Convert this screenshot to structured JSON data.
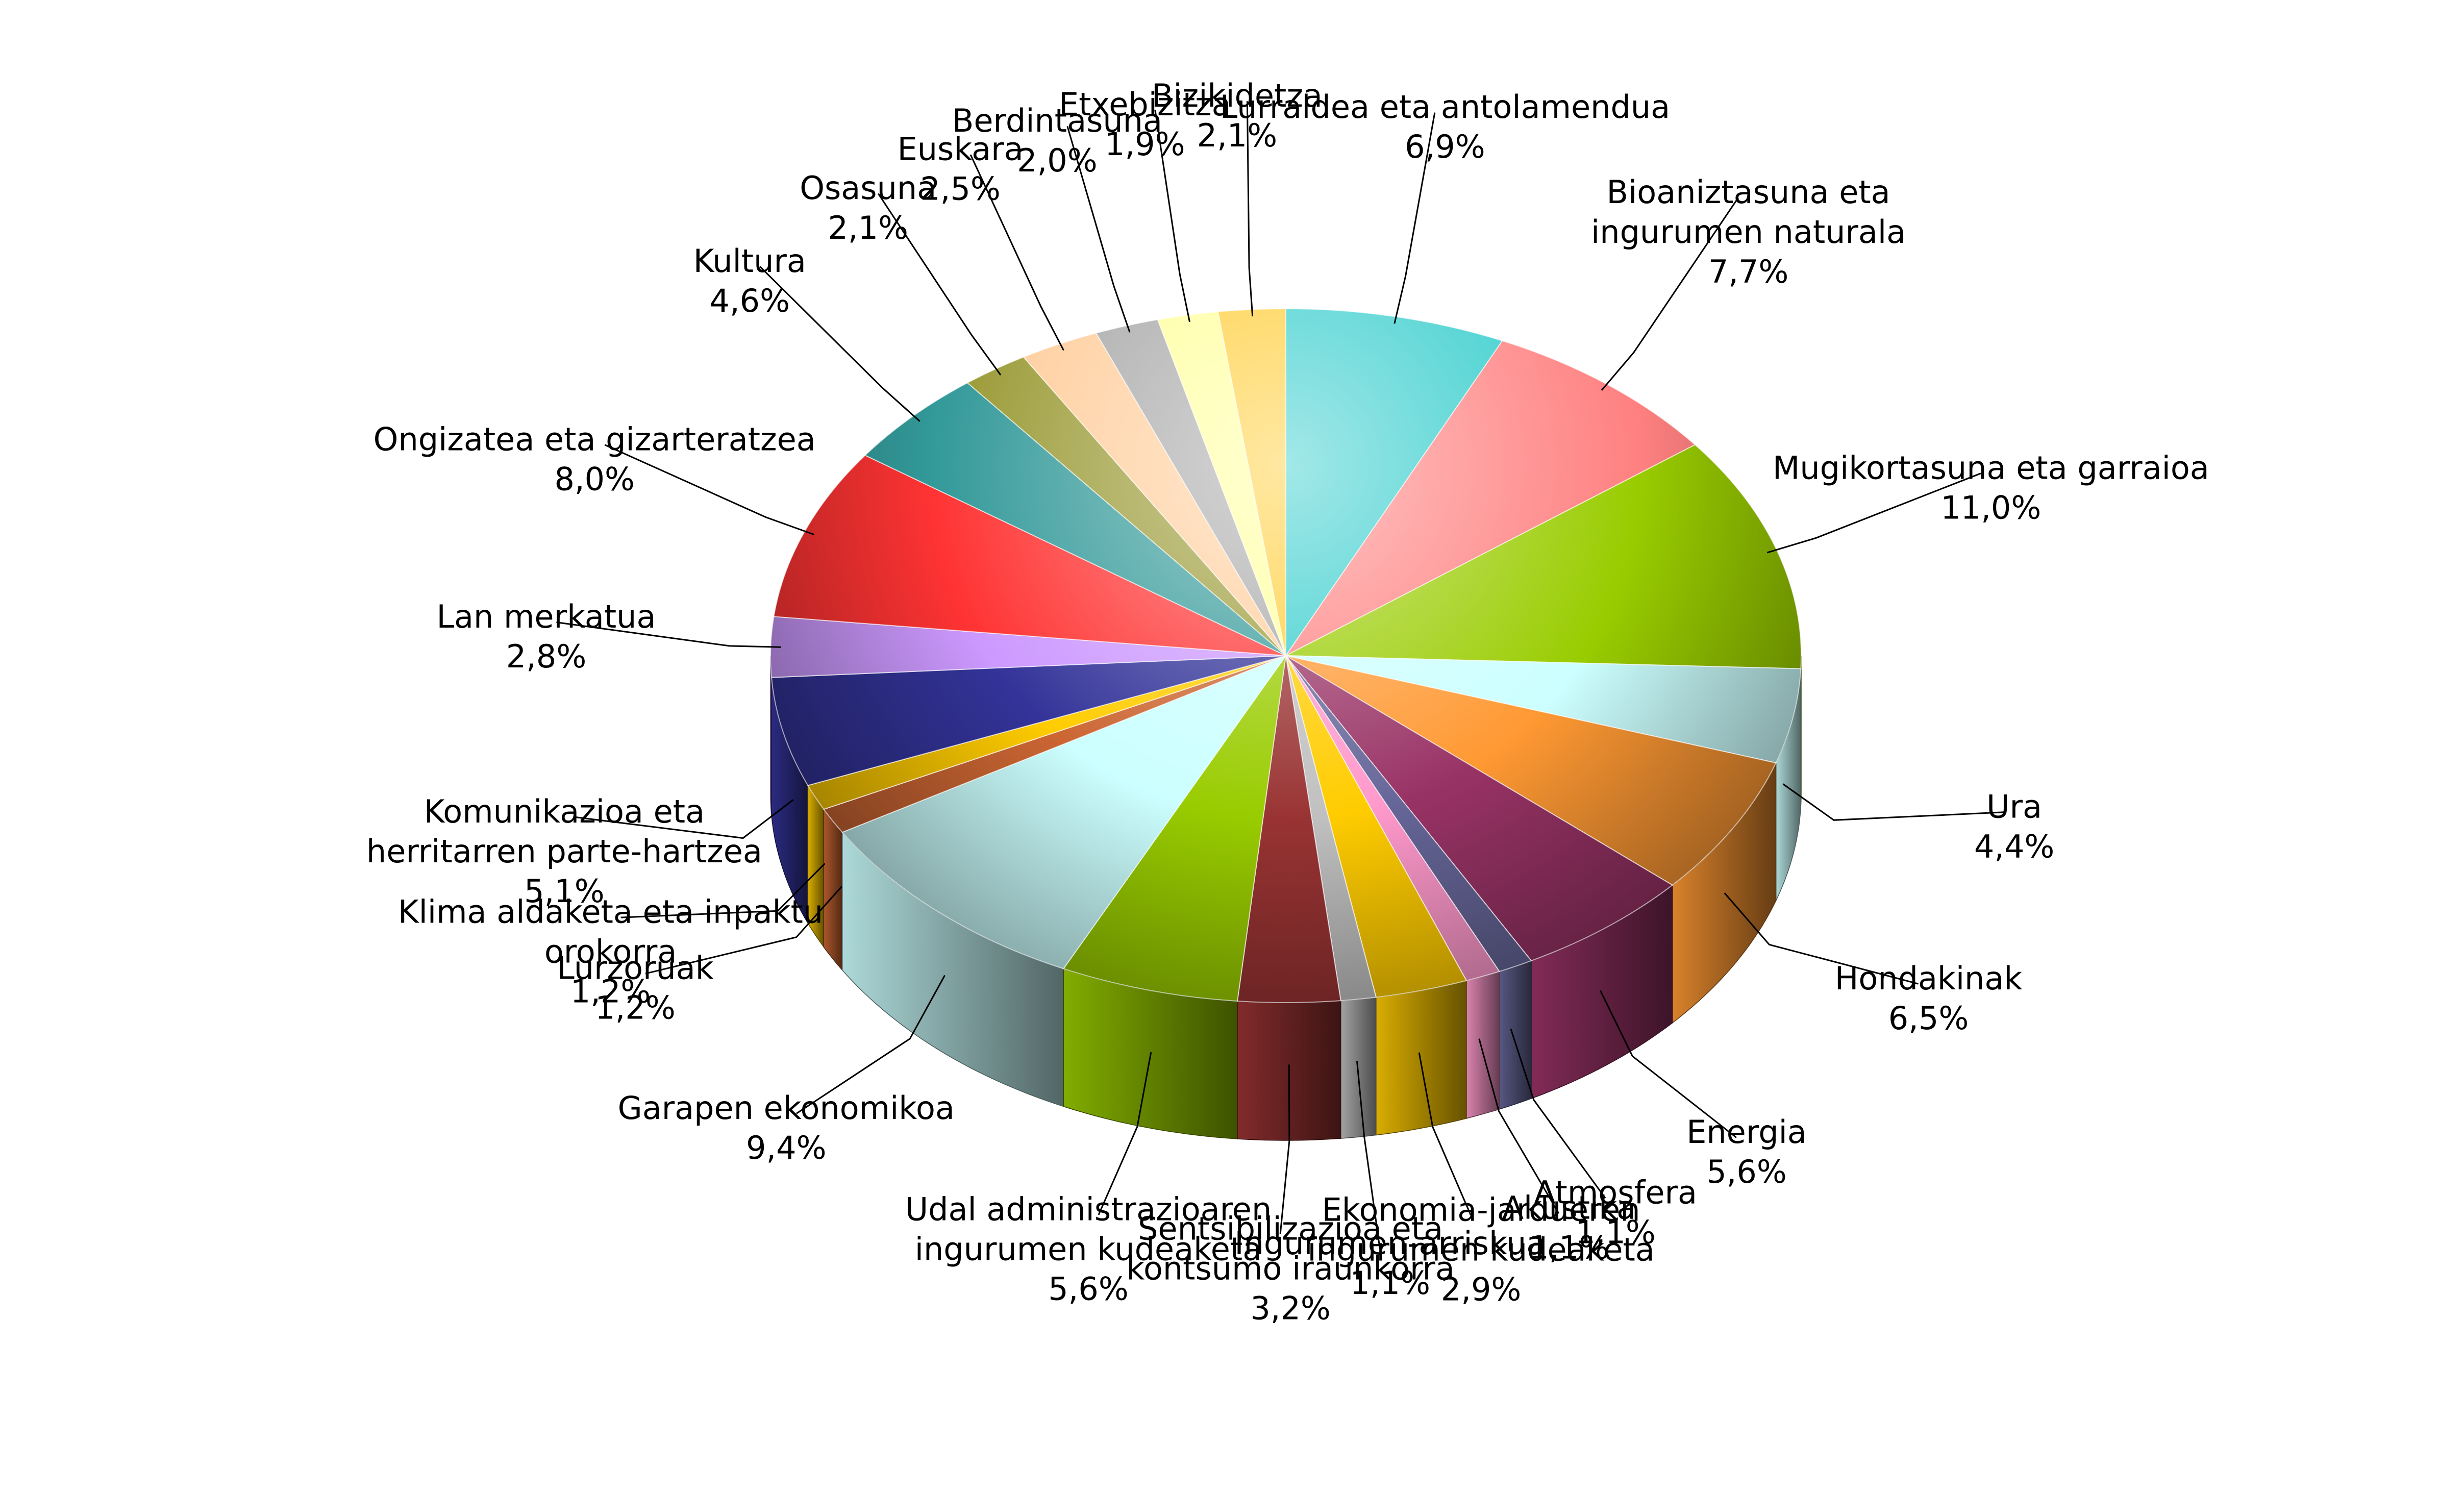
{
  "chart_data": {
    "type": "pie",
    "title": "",
    "legend": "none",
    "labels_style": "callout labels with leader lines",
    "start_angle": "12 o'clock",
    "direction": "clockwise",
    "slices": [
      {
        "label": "Lurraldea eta antolamendua",
        "value": 6.9,
        "value_label": "6,9%",
        "color": "#33CCCC"
      },
      {
        "label": "Bioaniztasuna eta ingurumen naturala",
        "value": 7.7,
        "value_label": "7,7%",
        "color": "#FF8080"
      },
      {
        "label": "Mugikortasuna eta garraioa",
        "value": 11.0,
        "value_label": "11,0%",
        "color": "#99CC00"
      },
      {
        "label": "Ura",
        "value": 4.4,
        "value_label": "4,4%",
        "color": "#CCFFFF"
      },
      {
        "label": "Hondakinak",
        "value": 6.5,
        "value_label": "6,5%",
        "color": "#FF9933"
      },
      {
        "label": "Energia",
        "value": 5.6,
        "value_label": "5,6%",
        "color": "#993366"
      },
      {
        "label": "Atmosfera",
        "value": 1.1,
        "value_label": "1,1%",
        "color": "#666699"
      },
      {
        "label": "Akustika",
        "value": 1.1,
        "value_label": "1,1%",
        "color": "#FF99CC"
      },
      {
        "label": "Ekonomia-jardueren ingurumen kudeaketa",
        "value": 2.9,
        "value_label": "2,9%",
        "color": "#FFCC00"
      },
      {
        "label": "Ingurumen-arriskua",
        "value": 1.1,
        "value_label": "1,1%",
        "color": "#C0C0C0"
      },
      {
        "label": "Sentsibilizazioa eta kontsumo iraunkorra",
        "value": 3.2,
        "value_label": "3,2%",
        "color": "#993333"
      },
      {
        "label": "Udal administrazioaren ingurumen kudeaketa",
        "value": 5.6,
        "value_label": "5,6%",
        "color": "#99CC00"
      },
      {
        "label": "Garapen ekonomikoa",
        "value": 9.4,
        "value_label": "9,4%",
        "color": "#CCFFFF"
      },
      {
        "label": "Lurzoruak",
        "value": 1.2,
        "value_label": "1,2%",
        "color": "#CC6633"
      },
      {
        "label": "Klima aldaketa eta inpaktu orokorra",
        "value": 1.2,
        "value_label": "1,2%",
        "color": "#FFCC00"
      },
      {
        "label": "Komunikazioa eta herritarren parte-hartzea",
        "value": 5.1,
        "value_label": "5,1%",
        "color": "#333399"
      },
      {
        "label": "Lan merkatua",
        "value": 2.8,
        "value_label": "2,8%",
        "color": "#CC99FF"
      },
      {
        "label": "Ongizatea eta gizarteratzea",
        "value": 8.0,
        "value_label": "8,0%",
        "color": "#FF3333"
      },
      {
        "label": "Kultura",
        "value": 4.6,
        "value_label": "4,6%",
        "color": "#339999"
      },
      {
        "label": "Osasuna",
        "value": 2.1,
        "value_label": "2,1%",
        "color": "#999933"
      },
      {
        "label": "Euskara",
        "value": 2.5,
        "value_label": "2,5%",
        "color": "#FFCC99"
      },
      {
        "label": "Berdintasuna",
        "value": 2.0,
        "value_label": "2,0%",
        "color": "#A6A6A6"
      },
      {
        "label": "Etxebizitza",
        "value": 1.9,
        "value_label": "1,9%",
        "color": "#FFFF99"
      },
      {
        "label": "Bizikidetza",
        "value": 2.1,
        "value_label": "2,1%",
        "color": "#FFCC33"
      }
    ]
  }
}
